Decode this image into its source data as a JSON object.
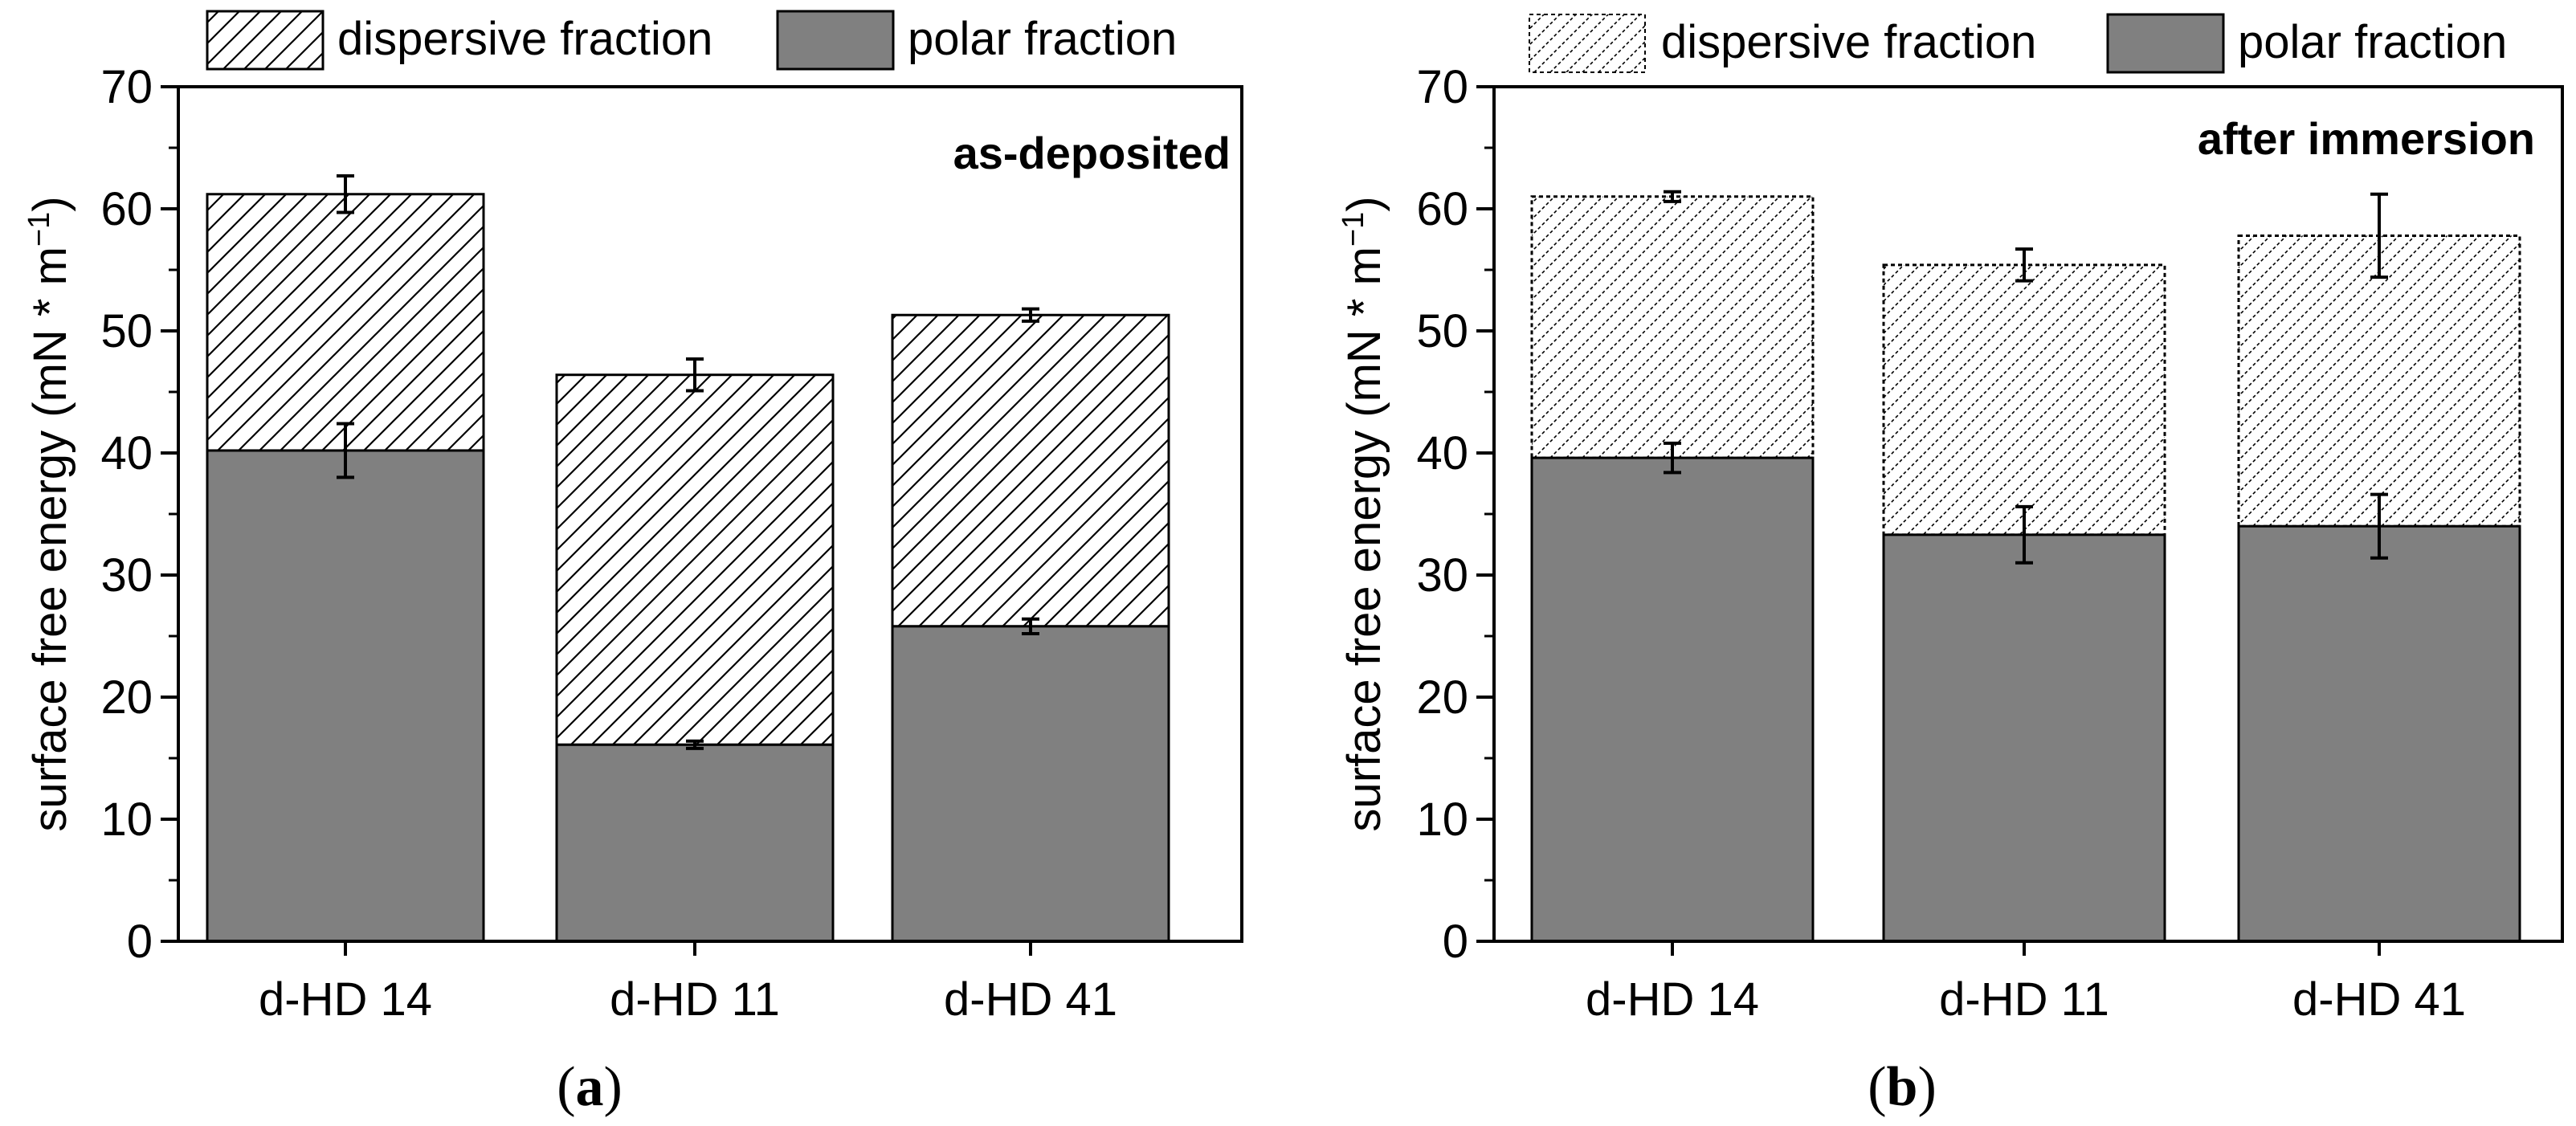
{
  "chart_data": [
    {
      "type": "bar",
      "stacked": true,
      "panel_label": "a",
      "annotation": "as-deposited",
      "ylabel": "surface free energy (mN * m",
      "ylabel_sup": "−1",
      "ylabel_close": ")",
      "ylim": [
        0,
        70
      ],
      "yticks": [
        0,
        10,
        20,
        30,
        40,
        50,
        60,
        70
      ],
      "categories": [
        "d-HD 14",
        "d-HD 11",
        "d-HD 41"
      ],
      "legend": [
        "dispersive fraction",
        "polar fraction"
      ],
      "legend_placement": "top, above plot",
      "dispersive_pattern": "dense diagonal hatch",
      "series": [
        {
          "name": "polar fraction",
          "values": [
            40.2,
            16.1,
            25.8
          ],
          "errors": [
            2.2,
            0.3,
            0.6
          ]
        },
        {
          "name": "dispersive fraction",
          "values": [
            21.0,
            30.3,
            25.5
          ],
          "totals": [
            61.2,
            46.4,
            51.3
          ],
          "errors": [
            1.5,
            1.3,
            0.5
          ]
        }
      ]
    },
    {
      "type": "bar",
      "stacked": true,
      "panel_label": "b",
      "annotation": "after immersion",
      "ylabel": "surface free energy (mN * m",
      "ylabel_sup": "−1",
      "ylabel_close": ")",
      "ylim": [
        0,
        70
      ],
      "yticks": [
        0,
        10,
        20,
        30,
        40,
        50,
        60,
        70
      ],
      "categories": [
        "d-HD 14",
        "d-HD 11",
        "d-HD 41"
      ],
      "legend": [
        "dispersive fraction",
        "polar fraction"
      ],
      "legend_placement": "top, above plot",
      "dispersive_pattern": "light dotted diagonal hatch",
      "series": [
        {
          "name": "polar fraction",
          "values": [
            39.6,
            33.3,
            34.0
          ],
          "errors": [
            1.2,
            2.3,
            2.6
          ]
        },
        {
          "name": "dispersive fraction",
          "values": [
            21.4,
            22.1,
            23.8
          ],
          "totals": [
            61.0,
            55.4,
            57.8
          ],
          "errors": [
            0.4,
            1.3,
            3.4
          ]
        }
      ]
    }
  ],
  "colors": {
    "polar": "#808080",
    "dispersive_bg": "#ffffff",
    "axis": "#000000"
  }
}
